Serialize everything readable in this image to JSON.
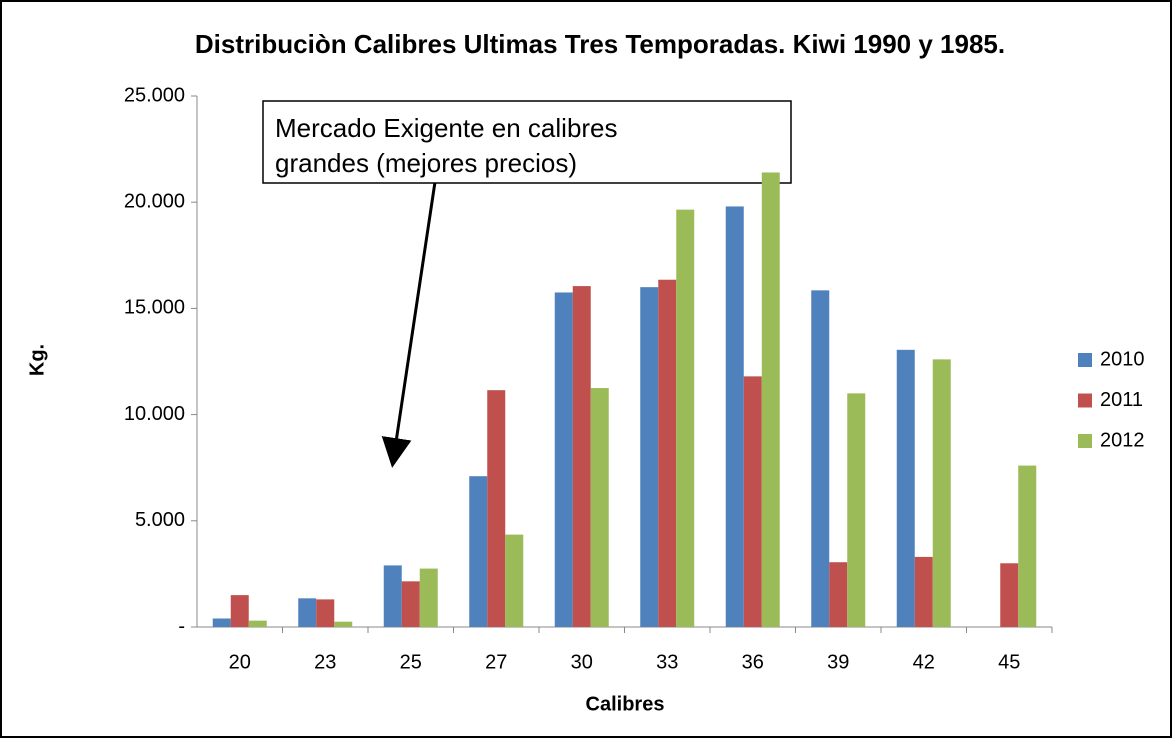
{
  "chart_data": {
    "type": "bar",
    "title": "Distribuciòn Calibres Ultimas Tres Temporadas. Kiwi 1990 y 1985.",
    "x_label": "Calibres",
    "y_label": "Kg.",
    "annotation": [
      "Mercado Exigente en calibres",
      "grandes (mejores precios)"
    ],
    "categories": [
      "20",
      "23",
      "25",
      "27",
      "30",
      "33",
      "36",
      "39",
      "42",
      "45"
    ],
    "series": [
      {
        "name": "2010",
        "color": "#4f81bd",
        "values": [
          400,
          1350,
          2900,
          7100,
          15750,
          16000,
          19800,
          15850,
          13050,
          0
        ]
      },
      {
        "name": "2011",
        "color": "#c0504d",
        "values": [
          1500,
          1300,
          2150,
          11150,
          16050,
          16350,
          11800,
          3050,
          3300,
          3000
        ]
      },
      {
        "name": "2012",
        "color": "#9bbb59",
        "values": [
          300,
          250,
          2750,
          4350,
          11250,
          19650,
          21400,
          11000,
          12600,
          7600
        ]
      }
    ],
    "ylim": [
      0,
      25000
    ],
    "yticks": [
      {
        "value": 0,
        "label": "-"
      },
      {
        "value": 5000,
        "label": "5.000"
      },
      {
        "value": 10000,
        "label": "10.000"
      },
      {
        "value": 15000,
        "label": "15.000"
      },
      {
        "value": 20000,
        "label": "20.000"
      },
      {
        "value": 25000,
        "label": "25.000"
      }
    ],
    "legend": "right"
  }
}
